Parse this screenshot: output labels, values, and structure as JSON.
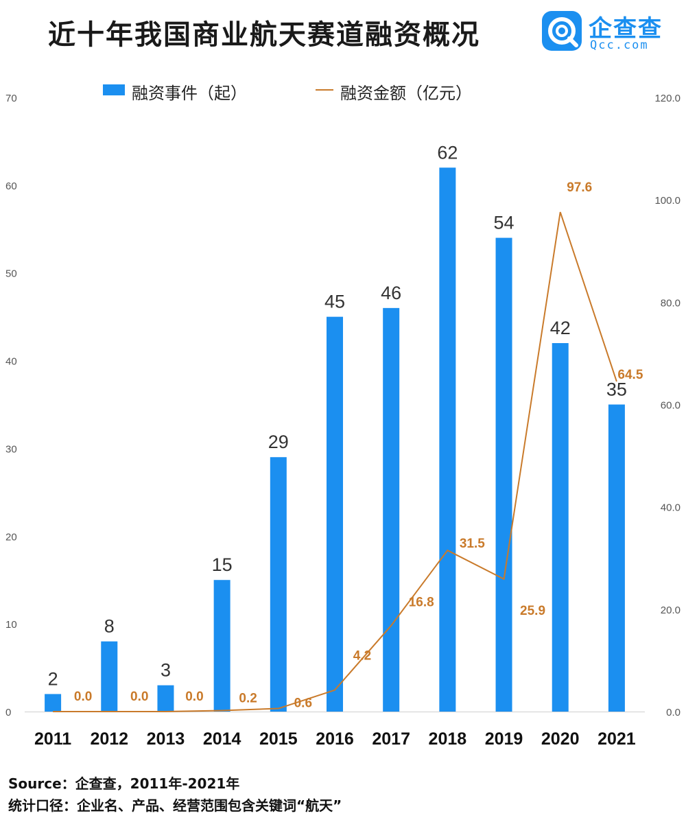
{
  "title": "近十年我国商业航天赛道融资概况",
  "brand": {
    "name": "企查查",
    "domain": "Qcc.com"
  },
  "footer": {
    "source": "Source：企查查，2011年-2021年",
    "note": "统计口径：企业名、产品、经营范围包含关键词“航天”"
  },
  "chart_data": {
    "type": "bar",
    "title": "近十年我国商业航天赛道融资概况",
    "categories": [
      "2011",
      "2012",
      "2013",
      "2014",
      "2015",
      "2016",
      "2017",
      "2018",
      "2019",
      "2020",
      "2021"
    ],
    "series": [
      {
        "name": "融资事件（起）",
        "type": "bar",
        "axis": "left",
        "color": "#1b8ff0",
        "values": [
          2,
          8,
          3,
          15,
          29,
          45,
          46,
          62,
          54,
          42,
          35
        ],
        "labels": [
          "2",
          "8",
          "3",
          "15",
          "29",
          "45",
          "46",
          "62",
          "54",
          "42",
          "35"
        ]
      },
      {
        "name": "融资金额（亿元）",
        "type": "line",
        "axis": "right",
        "color": "#c97a2a",
        "values": [
          0.0,
          0.0,
          0.0,
          0.2,
          0.6,
          4.2,
          16.8,
          31.5,
          25.9,
          97.6,
          64.5
        ],
        "labels": [
          "0.0",
          "0.0",
          "0.0",
          "0.2",
          "0.6",
          "4.2",
          "16.8",
          "31.5",
          "25.9",
          "97.6",
          "64.5"
        ]
      }
    ],
    "y_left": {
      "min": 0,
      "max": 70,
      "ticks": [
        "0",
        "10",
        "20",
        "30",
        "40",
        "50",
        "60",
        "70"
      ]
    },
    "y_right": {
      "min": 0,
      "max": 120,
      "ticks": [
        "0.0",
        "20.0",
        "40.0",
        "60.0",
        "80.0",
        "100.0",
        "120.0"
      ]
    },
    "grid": false,
    "legend": "top"
  }
}
